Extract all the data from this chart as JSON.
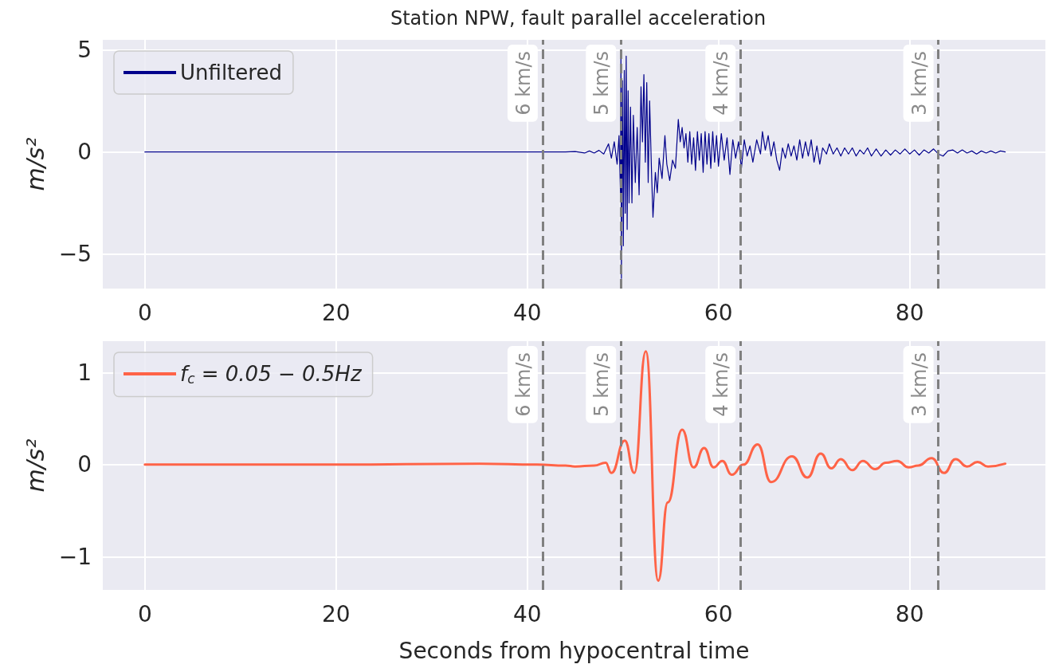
{
  "chart_data": [
    {
      "type": "line",
      "title": "Station NPW, fault parallel acceleration",
      "ylabel": "m/s²",
      "xlim": [
        -4.4,
        94.2
      ],
      "xticks": [
        0,
        20,
        40,
        60,
        80
      ],
      "ylim": [
        -6.7,
        5.5
      ],
      "yticks": [
        -5,
        0,
        5
      ],
      "grid": true,
      "legend": "top left",
      "marker": "none",
      "line_style": "solid",
      "ref_lines": [
        {
          "axis": "x",
          "value": 41.6,
          "label": "6 km/s",
          "color": "#808080",
          "line_style": "dashed"
        },
        {
          "axis": "x",
          "value": 49.8,
          "label": "5 km/s",
          "color": "#808080",
          "line_style": "dashed"
        },
        {
          "axis": "x",
          "value": 62.3,
          "label": "4 km/s",
          "color": "#808080",
          "line_style": "dashed"
        },
        {
          "axis": "x",
          "value": 83.0,
          "label": "3 km/s",
          "color": "#808080",
          "line_style": "dashed"
        }
      ],
      "series": [
        {
          "name": "Unfiltered",
          "color": "#00008b",
          "x": [
            0,
            44,
            45,
            46,
            46.5,
            47,
            47.5,
            48,
            48.5,
            48.8,
            49.1,
            49.4,
            49.6,
            49.75,
            49.8,
            49.85,
            49.95,
            50.05,
            50.15,
            50.25,
            50.35,
            50.45,
            50.55,
            50.65,
            50.8,
            50.95,
            51.1,
            51.3,
            51.5,
            51.7,
            51.9,
            52.05,
            52.2,
            52.35,
            52.5,
            52.65,
            52.8,
            53.0,
            53.15,
            53.4,
            53.6,
            53.8,
            54.1,
            54.4,
            54.6,
            54.9,
            55.2,
            55.5,
            55.8,
            56.0,
            56.2,
            56.4,
            56.6,
            56.8,
            57.0,
            57.2,
            57.4,
            57.6,
            57.8,
            58.0,
            58.2,
            58.4,
            58.6,
            58.8,
            59.0,
            59.2,
            59.4,
            59.6,
            59.8,
            60.0,
            60.3,
            60.6,
            60.9,
            61.2,
            61.5,
            61.8,
            62.1,
            62.4,
            62.7,
            63.0,
            63.3,
            63.6,
            64.0,
            64.4,
            64.6,
            64.9,
            65.2,
            65.5,
            65.8,
            66.1,
            66.4,
            66.7,
            67.0,
            67.3,
            67.6,
            67.9,
            68.2,
            68.5,
            68.8,
            69.1,
            69.4,
            69.7,
            70.0,
            70.3,
            70.6,
            70.9,
            71.3,
            71.6,
            72.0,
            72.4,
            72.8,
            73.2,
            73.6,
            74.0,
            74.4,
            74.8,
            75.2,
            75.6,
            76.0,
            76.5,
            77.0,
            77.5,
            78.0,
            78.5,
            79.0,
            79.5,
            80.0,
            80.5,
            81.0,
            81.5,
            82.0,
            82.5,
            83.0,
            83.5,
            84.0,
            84.5,
            85.0,
            85.5,
            86.0,
            86.5,
            87.0,
            87.5,
            88.0,
            88.5,
            89.0,
            89.5,
            90.0
          ],
          "values": [
            0,
            0,
            0.02,
            -0.05,
            0.05,
            -0.05,
            0.08,
            -0.1,
            0.4,
            -0.3,
            0.5,
            -0.6,
            0.8,
            -2,
            5.0,
            -6.2,
            3.5,
            -4.6,
            4.0,
            -3.0,
            4.7,
            -3.8,
            3.0,
            -2.5,
            2.2,
            -2.5,
            1.8,
            -1.5,
            1.2,
            -2.1,
            3.2,
            0.5,
            3.8,
            -0.5,
            3.4,
            -1.5,
            2.5,
            -1.0,
            -3.2,
            -1.0,
            -2.0,
            -0.3,
            -1.3,
            0.8,
            -0.6,
            -1.4,
            -0.4,
            -0.8,
            1.6,
            0.5,
            1.2,
            0.2,
            0.9,
            -0.5,
            1.0,
            -0.6,
            0.7,
            -0.9,
            1.0,
            -0.4,
            0.9,
            -1.0,
            1.0,
            -0.6,
            0.9,
            -0.8,
            1.0,
            -0.5,
            0.8,
            -0.7,
            0.9,
            -0.4,
            0.7,
            -1.1,
            0.6,
            -0.3,
            0.5,
            -0.8,
            0.6,
            -0.2,
            0.3,
            -0.5,
            0.6,
            -0.1,
            1.0,
            0.1,
            0.8,
            -0.2,
            0.5,
            -0.4,
            -0.9,
            0.2,
            -0.3,
            0.4,
            -0.2,
            0.3,
            -0.4,
            0.6,
            -0.3,
            0.5,
            -0.2,
            0.6,
            -0.5,
            0.3,
            -0.6,
            0.2,
            -0.1,
            0.4,
            -0.1,
            0.2,
            -0.2,
            0.2,
            -0.1,
            0.2,
            -0.2,
            0.1,
            -0.1,
            0.2,
            -0.2,
            0.15,
            -0.2,
            0.1,
            -0.15,
            0.1,
            -0.1,
            0.15,
            -0.1,
            0.1,
            -0.15,
            0.1,
            -0.05,
            0.15,
            -0.1,
            -0.2,
            0.05,
            0.1,
            -0.05,
            0.1,
            -0.05,
            0.05,
            -0.1,
            0.05,
            -0.05,
            0.05,
            -0.05,
            0.05,
            0
          ]
        }
      ]
    },
    {
      "type": "line",
      "xlabel": "Seconds from hypocentral time",
      "ylabel": "m/s²",
      "xlim": [
        -4.4,
        94.2
      ],
      "xticks": [
        0,
        20,
        40,
        60,
        80
      ],
      "ylim": [
        -1.36,
        1.34
      ],
      "yticks": [
        -1,
        0,
        1
      ],
      "grid": true,
      "legend": "top left",
      "marker": "none",
      "line_style": "solid",
      "ref_lines": [
        {
          "axis": "x",
          "value": 41.6,
          "label": "6 km/s",
          "color": "#808080",
          "line_style": "dashed"
        },
        {
          "axis": "x",
          "value": 49.8,
          "label": "5 km/s",
          "color": "#808080",
          "line_style": "dashed"
        },
        {
          "axis": "x",
          "value": 62.3,
          "label": "4 km/s",
          "color": "#808080",
          "line_style": "dashed"
        },
        {
          "axis": "x",
          "value": 83.0,
          "label": "3 km/s",
          "color": "#808080",
          "line_style": "dashed"
        }
      ],
      "series": [
        {
          "name": "f$_{c}$ = 0.05 − 0.5Hz",
          "color": "#ff6347",
          "x": [
            0,
            20,
            35,
            41,
            44,
            45,
            47,
            48.2,
            48.8,
            50.2,
            51.2,
            52.4,
            53.7,
            54.7,
            56.2,
            57.4,
            58.5,
            59.5,
            60.4,
            61.4,
            62.6,
            64.1,
            65.5,
            67.7,
            69.3,
            70.7,
            71.8,
            72.8,
            74.0,
            75.1,
            76.4,
            77.5,
            78.7,
            79.9,
            80.9,
            82.3,
            83.6,
            84.8,
            86.0,
            87.1,
            88.2,
            90.0
          ],
          "values": [
            0,
            0,
            0.01,
            0,
            -0.01,
            -0.02,
            -0.01,
            0.02,
            -0.09,
            0.26,
            -0.09,
            1.23,
            -1.26,
            -0.41,
            0.38,
            -0.03,
            0.18,
            -0.03,
            0.04,
            -0.11,
            0,
            0.22,
            -0.19,
            0.09,
            -0.14,
            0.12,
            -0.04,
            0.06,
            -0.06,
            0.04,
            -0.05,
            0.02,
            0.04,
            -0.03,
            -0.01,
            0.07,
            -0.09,
            0.06,
            -0.02,
            0.03,
            -0.02,
            0.01
          ]
        }
      ]
    }
  ]
}
